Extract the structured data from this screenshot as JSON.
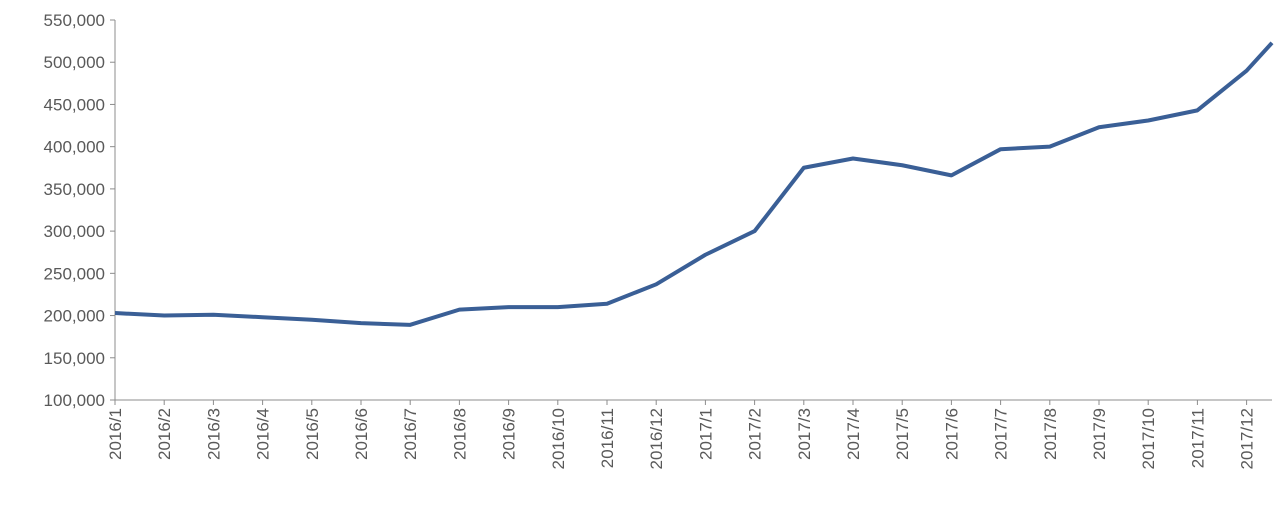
{
  "chart_data": {
    "type": "line",
    "categories": [
      "2016/1",
      "2016/2",
      "2016/3",
      "2016/4",
      "2016/5",
      "2016/6",
      "2016/7",
      "2016/8",
      "2016/9",
      "2016/10",
      "2016/11",
      "2016/12",
      "2017/1",
      "2017/2",
      "2017/3",
      "2017/4",
      "2017/5",
      "2017/6",
      "2017/7",
      "2017/8",
      "2017/9",
      "2017/10",
      "2017/11",
      "2017/12",
      null
    ],
    "series": [
      {
        "name": null,
        "color": "#3a5f96",
        "values": [
          203000,
          200000,
          201000,
          198000,
          195000,
          191000,
          189000,
          207000,
          210000,
          210000,
          214000,
          237000,
          272000,
          300000,
          375000,
          386000,
          378000,
          366000,
          397000,
          400000,
          423000,
          431000,
          443000,
          490000,
          523000
        ]
      }
    ],
    "ylim": [
      100000,
      550000
    ],
    "yticks": [
      {
        "value": 100000,
        "label": "100,000"
      },
      {
        "value": 150000,
        "label": "150,000"
      },
      {
        "value": 200000,
        "label": "200,000"
      },
      {
        "value": 250000,
        "label": "250,000"
      },
      {
        "value": 300000,
        "label": "300,000"
      },
      {
        "value": 350000,
        "label": "350,000"
      },
      {
        "value": 400000,
        "label": "400,000"
      },
      {
        "value": 450000,
        "label": "450,000"
      },
      {
        "value": 500000,
        "label": "500,000"
      },
      {
        "value": 550000,
        "label": "550,000"
      }
    ],
    "grid": false
  }
}
